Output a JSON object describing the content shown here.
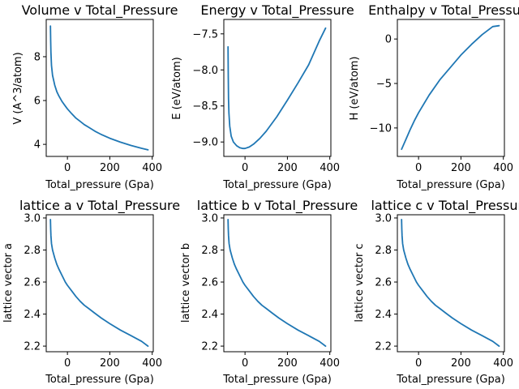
{
  "figure": {
    "series_color": "#1f77b4"
  },
  "chart_data": [
    {
      "type": "line",
      "title": "Volume v Total_Pressure",
      "xlabel": "Total_pressure (Gpa)",
      "ylabel": "V (A^3/atom)",
      "xlim": [
        -100,
        405
      ],
      "ylim": [
        3.45,
        9.7
      ],
      "xticks": [
        {
          "v": 0,
          "label": "0"
        },
        {
          "v": 200,
          "label": "200"
        },
        {
          "v": 400,
          "label": "400"
        }
      ],
      "yticks": [
        {
          "v": 4,
          "label": "4"
        },
        {
          "v": 6,
          "label": "6"
        },
        {
          "v": 8,
          "label": "8"
        }
      ],
      "series": [
        {
          "x": [
            -80,
            -79,
            -78,
            -75,
            -70,
            -60,
            -50,
            -40,
            -25,
            -10,
            0,
            20,
            40,
            60,
            80,
            100,
            130,
            160,
            200,
            250,
            300,
            350,
            380
          ],
          "y": [
            9.4,
            8.7,
            8.2,
            7.6,
            7.15,
            6.7,
            6.4,
            6.2,
            5.95,
            5.75,
            5.62,
            5.4,
            5.2,
            5.05,
            4.9,
            4.78,
            4.6,
            4.45,
            4.28,
            4.1,
            3.95,
            3.82,
            3.75
          ]
        }
      ]
    },
    {
      "type": "line",
      "title": "Energy v Total_Pressure",
      "xlabel": "Total_pressure (Gpa)",
      "ylabel": "E (eV/atom)",
      "xlim": [
        -100,
        405
      ],
      "ylim": [
        -9.2,
        -7.3
      ],
      "xticks": [
        {
          "v": 0,
          "label": "0"
        },
        {
          "v": 200,
          "label": "200"
        },
        {
          "v": 400,
          "label": "400"
        }
      ],
      "yticks": [
        {
          "v": -9.0,
          "label": "−9.0"
        },
        {
          "v": -8.5,
          "label": "−8.5"
        },
        {
          "v": -8.0,
          "label": "−8.0"
        },
        {
          "v": -7.5,
          "label": "−7.5"
        }
      ],
      "series": [
        {
          "x": [
            -80,
            -79,
            -78,
            -76,
            -72,
            -65,
            -55,
            -40,
            -25,
            -10,
            0,
            20,
            40,
            70,
            100,
            150,
            200,
            250,
            300,
            350,
            380
          ],
          "y": [
            -7.68,
            -8.1,
            -8.4,
            -8.6,
            -8.78,
            -8.92,
            -9.0,
            -9.05,
            -9.08,
            -9.09,
            -9.09,
            -9.07,
            -9.03,
            -8.95,
            -8.85,
            -8.65,
            -8.42,
            -8.18,
            -7.93,
            -7.6,
            -7.42
          ]
        }
      ]
    },
    {
      "type": "line",
      "title": "Enthalpy v Total_Pressure",
      "xlabel": "Total_pressure (Gpa)",
      "ylabel": "H (eV/atom)",
      "xlim": [
        -100,
        405
      ],
      "ylim": [
        -13.2,
        2.2
      ],
      "xticks": [
        {
          "v": 0,
          "label": "0"
        },
        {
          "v": 200,
          "label": "200"
        },
        {
          "v": 400,
          "label": "400"
        }
      ],
      "yticks": [
        {
          "v": -10,
          "label": "−10"
        },
        {
          "v": -5,
          "label": "−5"
        },
        {
          "v": 0,
          "label": "0"
        }
      ],
      "series": [
        {
          "x": [
            -80,
            -60,
            -40,
            -20,
            0,
            50,
            100,
            150,
            200,
            250,
            300,
            350,
            380
          ],
          "y": [
            -12.4,
            -11.3,
            -10.2,
            -9.2,
            -8.3,
            -6.3,
            -4.6,
            -3.2,
            -1.8,
            -0.6,
            0.5,
            1.4,
            1.5
          ]
        }
      ]
    },
    {
      "type": "line",
      "title": "lattice a v Total_Pressure",
      "xlabel": "Total_pressure (Gpa)",
      "ylabel": "lattice vector a",
      "xlim": [
        -100,
        405
      ],
      "ylim": [
        2.165,
        3.02
      ],
      "xticks": [
        {
          "v": 0,
          "label": "0"
        },
        {
          "v": 200,
          "label": "200"
        },
        {
          "v": 400,
          "label": "400"
        }
      ],
      "yticks": [
        {
          "v": 2.2,
          "label": "2.2"
        },
        {
          "v": 2.4,
          "label": "2.4"
        },
        {
          "v": 2.6,
          "label": "2.6"
        },
        {
          "v": 2.8,
          "label": "2.8"
        },
        {
          "v": 3.0,
          "label": "3.0"
        }
      ],
      "series": [
        {
          "x": [
            -80,
            -79,
            -78,
            -75,
            -70,
            -60,
            -50,
            -40,
            -25,
            -10,
            0,
            20,
            40,
            60,
            80,
            100,
            130,
            160,
            200,
            250,
            300,
            350,
            380
          ],
          "y": [
            2.99,
            2.93,
            2.89,
            2.84,
            2.8,
            2.75,
            2.71,
            2.68,
            2.64,
            2.6,
            2.58,
            2.545,
            2.51,
            2.48,
            2.455,
            2.435,
            2.405,
            2.375,
            2.34,
            2.3,
            2.265,
            2.23,
            2.2
          ]
        }
      ]
    },
    {
      "type": "line",
      "title": "lattice b v Total_Pressure",
      "xlabel": "Total_pressure (Gpa)",
      "ylabel": "lattice vector b",
      "xlim": [
        -100,
        405
      ],
      "ylim": [
        2.165,
        3.02
      ],
      "xticks": [
        {
          "v": 0,
          "label": "0"
        },
        {
          "v": 200,
          "label": "200"
        },
        {
          "v": 400,
          "label": "400"
        }
      ],
      "yticks": [
        {
          "v": 2.2,
          "label": "2.2"
        },
        {
          "v": 2.4,
          "label": "2.4"
        },
        {
          "v": 2.6,
          "label": "2.6"
        },
        {
          "v": 2.8,
          "label": "2.8"
        },
        {
          "v": 3.0,
          "label": "3.0"
        }
      ],
      "series": [
        {
          "x": [
            -80,
            -79,
            -78,
            -75,
            -70,
            -60,
            -50,
            -40,
            -25,
            -10,
            0,
            20,
            40,
            60,
            80,
            100,
            130,
            160,
            200,
            250,
            300,
            350,
            380
          ],
          "y": [
            2.99,
            2.93,
            2.89,
            2.84,
            2.8,
            2.75,
            2.71,
            2.68,
            2.64,
            2.6,
            2.58,
            2.545,
            2.51,
            2.48,
            2.455,
            2.435,
            2.405,
            2.375,
            2.34,
            2.3,
            2.265,
            2.23,
            2.2
          ]
        }
      ]
    },
    {
      "type": "line",
      "title": "lattice c v Total_Pressure",
      "xlabel": "Total_pressure (Gpa)",
      "ylabel": "lattice vector c",
      "xlim": [
        -100,
        405
      ],
      "ylim": [
        2.165,
        3.02
      ],
      "xticks": [
        {
          "v": 0,
          "label": "0"
        },
        {
          "v": 200,
          "label": "200"
        },
        {
          "v": 400,
          "label": "400"
        }
      ],
      "yticks": [
        {
          "v": 2.2,
          "label": "2.2"
        },
        {
          "v": 2.4,
          "label": "2.4"
        },
        {
          "v": 2.6,
          "label": "2.6"
        },
        {
          "v": 2.8,
          "label": "2.8"
        },
        {
          "v": 3.0,
          "label": "3.0"
        }
      ],
      "series": [
        {
          "x": [
            -80,
            -79,
            -78,
            -75,
            -70,
            -60,
            -50,
            -40,
            -25,
            -10,
            0,
            20,
            40,
            60,
            80,
            100,
            130,
            160,
            200,
            250,
            300,
            350,
            380
          ],
          "y": [
            2.99,
            2.93,
            2.89,
            2.84,
            2.8,
            2.75,
            2.71,
            2.68,
            2.64,
            2.6,
            2.58,
            2.545,
            2.51,
            2.48,
            2.455,
            2.435,
            2.405,
            2.375,
            2.34,
            2.3,
            2.265,
            2.23,
            2.2
          ]
        }
      ]
    }
  ]
}
